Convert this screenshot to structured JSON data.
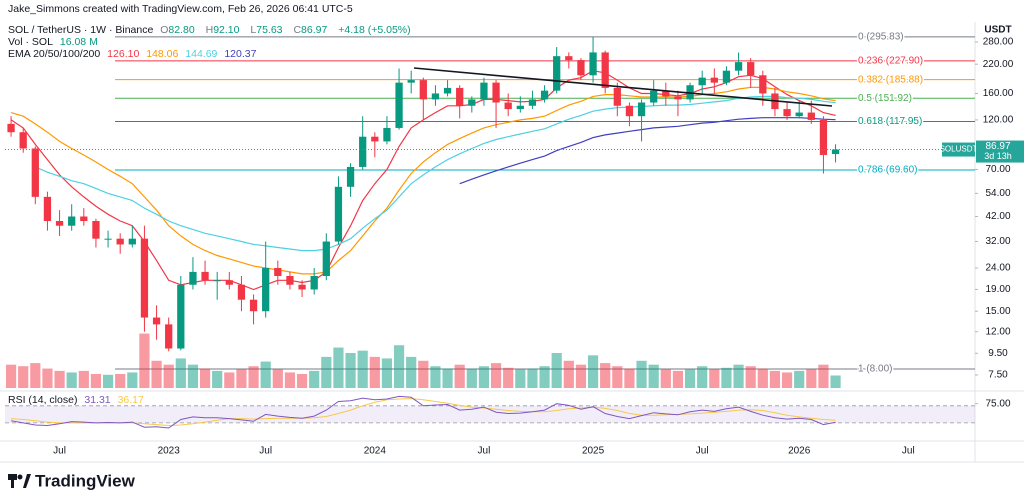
{
  "header": {
    "attribution": "Jake_Simmons created with TradingView.com, Feb 26, 2026 06:41 UTC-5",
    "symbol": "SOL / TetherUS · 1W · Binance",
    "ohlc": [
      {
        "key": "O",
        "value": "82.80"
      },
      {
        "key": "H",
        "value": "92.10"
      },
      {
        "key": "L",
        "value": "75.63"
      },
      {
        "key": "C",
        "value": "86.97"
      }
    ],
    "change": "+4.18 (+5.05%)",
    "volume_label": "Vol · SOL",
    "volume_value": "16.08 M",
    "ema_label": "EMA 20/50/100/200"
  },
  "chart_data": {
    "type": "candlestick",
    "yscale": "log",
    "axis_unit": "USDT",
    "grid": false,
    "up_color": "#089981",
    "down_color": "#f23645",
    "ylim": [
      6.37,
      319
    ],
    "yticks": [
      {
        "value": 280,
        "label": "280.00"
      },
      {
        "value": 220,
        "label": "220.00"
      },
      {
        "value": 160,
        "label": "160.00"
      },
      {
        "value": 120,
        "label": "120.00"
      },
      {
        "value": 70,
        "label": "70.00"
      },
      {
        "value": 54,
        "label": "54.00"
      },
      {
        "value": 42,
        "label": "42.00"
      },
      {
        "value": 32,
        "label": "32.00"
      },
      {
        "value": 24,
        "label": "24.00"
      },
      {
        "value": 19,
        "label": "19.00"
      },
      {
        "value": 15,
        "label": "15.00"
      },
      {
        "value": 12,
        "label": "12.00"
      },
      {
        "value": 9.5,
        "label": "9.50"
      },
      {
        "value": 7.5,
        "label": "7.50"
      }
    ],
    "categories": [
      null,
      null,
      null,
      null,
      "Jul",
      null,
      null,
      null,
      null,
      null,
      null,
      null,
      null,
      "2023",
      null,
      null,
      null,
      null,
      null,
      null,
      null,
      "Jul",
      null,
      null,
      null,
      null,
      null,
      null,
      null,
      null,
      "2024",
      null,
      null,
      null,
      null,
      null,
      null,
      null,
      null,
      "Jul",
      null,
      null,
      null,
      null,
      null,
      null,
      null,
      null,
      "2025",
      null,
      null,
      null,
      null,
      null,
      null,
      null,
      null,
      "Jul",
      null,
      null,
      null,
      null,
      null,
      null,
      null,
      "2026",
      null,
      null,
      null,
      null,
      null,
      null,
      null,
      null,
      "Jul",
      null,
      null,
      null,
      null,
      null
    ],
    "ohlc": [
      [
        115,
        125,
        100,
        105
      ],
      [
        105,
        110,
        84,
        88
      ],
      [
        88,
        90,
        48,
        52
      ],
      [
        52,
        55,
        36,
        40
      ],
      [
        40,
        45,
        34,
        38
      ],
      [
        38,
        48,
        36,
        42
      ],
      [
        42,
        46,
        38,
        40
      ],
      [
        40,
        41,
        30,
        33
      ],
      [
        33,
        36,
        30,
        33
      ],
      [
        33,
        35,
        28,
        31
      ],
      [
        31,
        38,
        30,
        33
      ],
      [
        33,
        38,
        12,
        14
      ],
      [
        14,
        16,
        11,
        13
      ],
      [
        13,
        14,
        9.7,
        10
      ],
      [
        10,
        22,
        9.8,
        20
      ],
      [
        20,
        27,
        19,
        23
      ],
      [
        23,
        26,
        20,
        21
      ],
      [
        21,
        23,
        17,
        21
      ],
      [
        21,
        23,
        19,
        20
      ],
      [
        20,
        22,
        15,
        17
      ],
      [
        17,
        18,
        13,
        15
      ],
      [
        15,
        32,
        14,
        24
      ],
      [
        24,
        26,
        20,
        22
      ],
      [
        22,
        23,
        19,
        20
      ],
      [
        20,
        21,
        17.5,
        19
      ],
      [
        19,
        24,
        18,
        22
      ],
      [
        22,
        35,
        21,
        32
      ],
      [
        32,
        65,
        31,
        58
      ],
      [
        58,
        75,
        52,
        72
      ],
      [
        72,
        125,
        70,
        100
      ],
      [
        100,
        105,
        80,
        95
      ],
      [
        95,
        125,
        92,
        110
      ],
      [
        110,
        210,
        108,
        180
      ],
      [
        180,
        205,
        160,
        185
      ],
      [
        185,
        190,
        120,
        150
      ],
      [
        150,
        175,
        140,
        160
      ],
      [
        160,
        185,
        155,
        170
      ],
      [
        170,
        175,
        122,
        140
      ],
      [
        140,
        155,
        130,
        150
      ],
      [
        150,
        190,
        140,
        180
      ],
      [
        180,
        185,
        110,
        145
      ],
      [
        145,
        160,
        125,
        135
      ],
      [
        135,
        155,
        130,
        140
      ],
      [
        140,
        165,
        135,
        150
      ],
      [
        150,
        175,
        145,
        165
      ],
      [
        165,
        265,
        160,
        240
      ],
      [
        240,
        250,
        210,
        230
      ],
      [
        230,
        235,
        185,
        195
      ],
      [
        195,
        295.83,
        180,
        250
      ],
      [
        250,
        255,
        160,
        170
      ],
      [
        170,
        180,
        125,
        140
      ],
      [
        140,
        145,
        112,
        125
      ],
      [
        125,
        150,
        95,
        145
      ],
      [
        145,
        185,
        140,
        165
      ],
      [
        165,
        180,
        140,
        155
      ],
      [
        155,
        165,
        125,
        150
      ],
      [
        150,
        180,
        145,
        175
      ],
      [
        175,
        205,
        160,
        190
      ],
      [
        190,
        210,
        160,
        180
      ],
      [
        180,
        215,
        175,
        205
      ],
      [
        205,
        250,
        195,
        225
      ],
      [
        225,
        235,
        170,
        195
      ],
      [
        195,
        205,
        140,
        160
      ],
      [
        160,
        170,
        125,
        135
      ],
      [
        135,
        145,
        120,
        125
      ],
      [
        125,
        148,
        122,
        130
      ],
      [
        130,
        148,
        115,
        120
      ],
      [
        120,
        125,
        67,
        82
      ],
      [
        82.8,
        92.1,
        75.63,
        86.97
      ],
      null,
      null,
      null,
      null,
      null,
      null,
      null,
      null,
      null,
      null,
      null
    ],
    "volume": {
      "ylim": [
        0,
        90
      ],
      "values": [
        30,
        28,
        32,
        25,
        22,
        20,
        22,
        18,
        17,
        18,
        20,
        70,
        35,
        30,
        38,
        30,
        25,
        22,
        20,
        24,
        28,
        34,
        24,
        20,
        18,
        22,
        40,
        52,
        45,
        48,
        40,
        38,
        55,
        40,
        35,
        28,
        25,
        30,
        25,
        28,
        32,
        26,
        24,
        25,
        28,
        45,
        35,
        30,
        42,
        32,
        28,
        25,
        35,
        30,
        24,
        22,
        24,
        28,
        24,
        26,
        30,
        28,
        25,
        22,
        20,
        22,
        24,
        30,
        16.08,
        null,
        null,
        null,
        null,
        null,
        null,
        null,
        null,
        null,
        null,
        null
      ]
    },
    "ema": {
      "series": [
        {
          "color": "#f23645",
          "legend_value": "126.10",
          "values": [
            120,
            110,
            92,
            78,
            66,
            58,
            52,
            47,
            43,
            40,
            38,
            32,
            26,
            21,
            20,
            20.5,
            21,
            21,
            21,
            20,
            19,
            20,
            21,
            21,
            20.5,
            21,
            23,
            30,
            38,
            50,
            60,
            70,
            90,
            110,
            120,
            130,
            140,
            140,
            142,
            150,
            150,
            148,
            146,
            147,
            150,
            170,
            185,
            190,
            205,
            200,
            185,
            170,
            160,
            160,
            158,
            156,
            160,
            168,
            172,
            180,
            192,
            195,
            188,
            172,
            158,
            148,
            140,
            130,
            126.1,
            null,
            null,
            null,
            null,
            null,
            null,
            null,
            null,
            null,
            null,
            null
          ]
        },
        {
          "color": "#ff9800",
          "legend_value": "148.06",
          "values": [
            130,
            125,
            115,
            105,
            95,
            88,
            82,
            76,
            70,
            65,
            60,
            52,
            45,
            38,
            34,
            31,
            29,
            27.5,
            26.5,
            25.5,
            24.5,
            24,
            23.5,
            23,
            22.5,
            22.5,
            23,
            26,
            29,
            34,
            40,
            46,
            56,
            67,
            76,
            84,
            92,
            98,
            104,
            110,
            114,
            117,
            120,
            122,
            125,
            133,
            141,
            147,
            155,
            158,
            158,
            156,
            154,
            154,
            154,
            154,
            155,
            158,
            160,
            163,
            168,
            171,
            171,
            168,
            163,
            160,
            156,
            151,
            148.06,
            null,
            null,
            null,
            null,
            null,
            null,
            null,
            null,
            null,
            null,
            null
          ]
        },
        {
          "color": "#4dd0e1",
          "legend_value": "144.69",
          "values": [
            null,
            null,
            72,
            68,
            65,
            62,
            60,
            57,
            54,
            52,
            50,
            46,
            43,
            40,
            38,
            36.5,
            35,
            34,
            33,
            32,
            31,
            30.5,
            30,
            29.5,
            29,
            29,
            29.5,
            31,
            33,
            37,
            41,
            45,
            52,
            60,
            66,
            72,
            78,
            83,
            88,
            93,
            97,
            100,
            103,
            106,
            109,
            115,
            121,
            126,
            132,
            135,
            137,
            138,
            139,
            140,
            141,
            141,
            142,
            144,
            146,
            148,
            152,
            154,
            155,
            155,
            153,
            152,
            150,
            147,
            144.69,
            null,
            null,
            null,
            null,
            null,
            null,
            null,
            null,
            null,
            null,
            null
          ]
        },
        {
          "color": "#3f3fbf",
          "legend_value": "120.37",
          "values": [
            null,
            null,
            null,
            null,
            null,
            null,
            null,
            null,
            null,
            null,
            null,
            null,
            null,
            null,
            null,
            null,
            null,
            null,
            null,
            null,
            null,
            null,
            null,
            null,
            null,
            null,
            null,
            null,
            null,
            null,
            null,
            null,
            null,
            null,
            null,
            null,
            null,
            60,
            63,
            66,
            69,
            72,
            75,
            78,
            81,
            86,
            90,
            94,
            99,
            102,
            104,
            106,
            108,
            110,
            111,
            112,
            114,
            116,
            117,
            119,
            121,
            122,
            123,
            123,
            123,
            123,
            122,
            121,
            120.37,
            null,
            null,
            null,
            null,
            null,
            null,
            null,
            null,
            null,
            null,
            null
          ]
        }
      ]
    },
    "fib": [
      {
        "label": "0 (295.83)",
        "value": 295.83,
        "color": "#787b86"
      },
      {
        "label": "0.236 (227.90)",
        "value": 227.9,
        "color": "#f23645"
      },
      {
        "label": "0.382 (185.88)",
        "value": 185.88,
        "color": "#ff9800"
      },
      {
        "label": "0.5 (151.92)",
        "value": 151.92,
        "color": "#4caf50"
      },
      {
        "label": "0.618 (117.95)",
        "value": 117.95,
        "color": "#089981"
      },
      {
        "label": "0.786 (69.60)",
        "value": 69.6,
        "color": "#00acc1"
      },
      {
        "label": "1 (8.00)",
        "value": 8,
        "color": "#787b86"
      }
    ],
    "price_label": {
      "symbol": "SOLUSDT",
      "price": "86.97",
      "countdown": "3d 13h",
      "color": "#26a69a"
    },
    "rsi": {
      "title": "RSI (14, close)",
      "value_label": "31.31",
      "ma_label": "36.17",
      "color": "#7e57c2",
      "ma_color": "#f7c948",
      "ylim": [
        -10,
        100
      ],
      "yticks": [
        {
          "value": 75,
          "label": "75.00"
        }
      ],
      "band": [
        30,
        70
      ],
      "values": [
        35,
        30,
        25,
        24,
        28,
        33,
        32,
        30,
        31,
        30,
        32,
        20,
        21,
        18,
        38,
        44,
        42,
        42,
        40,
        37,
        34,
        50,
        46,
        43,
        41,
        46,
        60,
        80,
        82,
        88,
        84,
        86,
        92,
        90,
        70,
        72,
        73,
        60,
        62,
        67,
        55,
        52,
        53,
        56,
        60,
        75,
        71,
        62,
        68,
        52,
        45,
        40,
        47,
        54,
        51,
        49,
        56,
        60,
        57,
        63,
        67,
        57,
        48,
        42,
        39,
        41,
        38,
        26,
        31.31,
        null,
        null,
        null,
        null,
        null,
        null,
        null,
        null,
        null,
        null,
        null
      ],
      "ma_values": [
        40,
        38,
        35,
        32,
        30,
        30,
        30,
        30,
        30,
        30,
        30,
        28,
        26,
        24,
        25,
        28,
        32,
        36,
        40,
        40,
        39,
        40,
        41,
        41,
        41,
        42,
        45,
        52,
        60,
        70,
        78,
        84,
        86,
        87,
        84,
        80,
        76,
        71,
        67,
        65,
        62,
        59,
        57,
        56,
        56,
        59,
        63,
        65,
        67,
        64,
        59,
        52,
        48,
        48,
        49,
        50,
        51,
        53,
        55,
        57,
        60,
        61,
        59,
        54,
        48,
        44,
        41,
        38,
        36.17,
        null,
        null,
        null,
        null,
        null,
        null,
        null,
        null,
        null,
        null,
        null
      ]
    }
  },
  "footer": {
    "brand": "TradingView"
  }
}
